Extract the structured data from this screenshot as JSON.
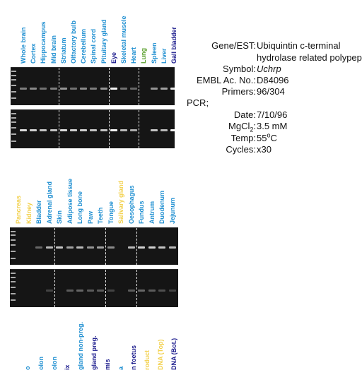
{
  "colors": {
    "tissue_blue": "#1f8fd1",
    "highlight_navy": "#1a1a8c",
    "highlight_green": "#5aa02c",
    "highlight_yellow": "#f2d04a"
  },
  "panel1": {
    "lanes": [
      {
        "label": "Whole brain",
        "color": "#1f8fd1"
      },
      {
        "label": "Cortex",
        "color": "#1f8fd1"
      },
      {
        "label": "Hippocampus",
        "color": "#1f8fd1"
      },
      {
        "label": "Mid brain",
        "color": "#1f8fd1"
      },
      {
        "label": "Striatum",
        "color": "#1f8fd1"
      },
      {
        "label": "Olfactory bulb",
        "color": "#1f8fd1"
      },
      {
        "label": "Cerebellum",
        "color": "#1f8fd1"
      },
      {
        "label": "Spinal cord",
        "color": "#1f8fd1"
      },
      {
        "label": "Pituitary gland",
        "color": "#1f8fd1"
      },
      {
        "label": "Eye",
        "color": "#1a1a8c"
      },
      {
        "label": "Skeletal muscle",
        "color": "#1f8fd1"
      },
      {
        "label": "Heart",
        "color": "#1f8fd1"
      },
      {
        "label": "Lung",
        "color": "#5aa02c"
      },
      {
        "label": "Spleen",
        "color": "#1f8fd1"
      },
      {
        "label": "Liver",
        "color": "#1f8fd1"
      },
      {
        "label": "Gall bladder",
        "color": "#1a1a8c"
      }
    ],
    "gel_top_intensity": [
      0.45,
      0.5,
      0.4,
      0.45,
      0.55,
      0.4,
      0.5,
      0.45,
      0.55,
      0.95,
      0.4,
      0.35,
      0.0,
      0.55,
      0.6,
      0.9
    ],
    "gel_bottom_intensity": [
      0.85,
      0.8,
      0.75,
      0.75,
      0.85,
      0.8,
      0.8,
      0.75,
      0.75,
      0.95,
      0.7,
      0.65,
      0.0,
      0.75,
      0.7,
      0.95
    ]
  },
  "panel2": {
    "lanes": [
      {
        "label": "Pancreas",
        "color": "#f2d04a"
      },
      {
        "label": "Kidney",
        "color": "#f2d04a"
      },
      {
        "label": "Bladder",
        "color": "#1f8fd1"
      },
      {
        "label": "Adrenal gland",
        "color": "#1f8fd1"
      },
      {
        "label": "Skin",
        "color": "#1f8fd1"
      },
      {
        "label": "Adipose tissue",
        "color": "#1f8fd1"
      },
      {
        "label": "Long bone",
        "color": "#1f8fd1"
      },
      {
        "label": "Paw",
        "color": "#1f8fd1"
      },
      {
        "label": "Teeth",
        "color": "#1f8fd1"
      },
      {
        "label": "Tongue",
        "color": "#1f8fd1"
      },
      {
        "label": "Salivary gland",
        "color": "#f2d04a"
      },
      {
        "label": "Oesophagus",
        "color": "#1f8fd1"
      },
      {
        "label": "Fundus",
        "color": "#1f8fd1"
      },
      {
        "label": "Antrum",
        "color": "#1f8fd1"
      },
      {
        "label": "Duodenum",
        "color": "#1f8fd1"
      },
      {
        "label": "Jejunum",
        "color": "#1f8fd1"
      }
    ],
    "gel_top_intensity": [
      0.0,
      0.0,
      0.35,
      0.7,
      0.75,
      0.6,
      0.7,
      0.55,
      0.6,
      0.5,
      0.0,
      0.7,
      0.8,
      0.8,
      0.75,
      0.7
    ],
    "gel_bottom_intensity": [
      0.0,
      0.0,
      0.0,
      0.2,
      0.0,
      0.3,
      0.35,
      0.3,
      0.3,
      0.2,
      0.0,
      0.3,
      0.35,
      0.3,
      0.25,
      0.2
    ]
  },
  "panel3": {
    "lanes": [
      {
        "label": "o",
        "color": "#1f8fd1"
      },
      {
        "label": "olon",
        "color": "#1f8fd1"
      },
      {
        "label": "olon",
        "color": "#1f8fd1"
      },
      {
        "label": "ix",
        "color": "#1a1a8c"
      },
      {
        "label": "gland non-preg.",
        "color": "#1f8fd1"
      },
      {
        "label": "gland preg.",
        "color": "#1a1a8c"
      },
      {
        "label": "mis",
        "color": "#1a1a8c"
      },
      {
        "label": "a",
        "color": "#1f8fd1"
      },
      {
        "label": "n foetus",
        "color": "#1a1a8c"
      },
      {
        "label": "roduct",
        "color": "#f2d04a"
      },
      {
        "label": "DNA (Top)",
        "color": "#f2d04a"
      },
      {
        "label": "DNA (Bot.)",
        "color": "#1a1a8c"
      }
    ]
  },
  "info": {
    "gene_key": "Gene/EST:",
    "gene_value_1": "Ubiquintin c-terminal",
    "gene_value_2": "hydrolase related polypeptide",
    "symbol_key": "Symbol:",
    "symbol_value": "Uchrp",
    "embl_key": "EMBL Ac. No.:",
    "embl_value": "D84096",
    "primers_key": "Primers:",
    "primers_value": "96/304",
    "pcr_label": "PCR;",
    "date_key": "Date:",
    "date_value": "7/10/96",
    "mgcl_key_prefix": "MgCl",
    "mgcl_key_sub": "2",
    "mgcl_key_suffix": ":",
    "mgcl_value": "3.5 mM",
    "temp_key": "Temp:",
    "temp_value_prefix": "55",
    "temp_value_sup": "o",
    "temp_value_suffix": "C",
    "cycles_key": "Cycles:",
    "cycles_value": "x30"
  }
}
